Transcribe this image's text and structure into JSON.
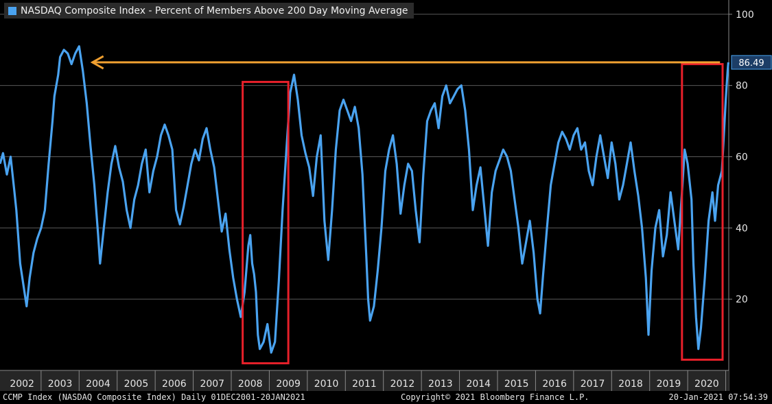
{
  "chart_data": {
    "type": "line",
    "title": "NASDAQ Composite Index - Percent of Members Above 200 Day Moving Average",
    "y_ticks": [
      20,
      40,
      60,
      80,
      100
    ],
    "ylim": [
      0,
      104
    ],
    "x_tick_labels": [
      "2002",
      "2003",
      "2004",
      "2005",
      "2006",
      "2007",
      "2008",
      "2009",
      "2010",
      "2011",
      "2012",
      "2013",
      "2014",
      "2015",
      "2016",
      "2017",
      "2018",
      "2019",
      "2020"
    ],
    "xlim": [
      2001.92,
      2021.08
    ],
    "last_value_label": "86.49",
    "reference_level": 86.49,
    "highlight_boxes": [
      {
        "x0": 2008.3,
        "x1": 2009.5,
        "y0": 2,
        "y1": 81
      },
      {
        "x0": 2019.85,
        "x1": 2021.25,
        "y0": 3,
        "y1": 86
      }
    ],
    "series": [
      {
        "color": "#4aa3f0",
        "points": [
          [
            2001.92,
            58
          ],
          [
            2002.0,
            61
          ],
          [
            2002.1,
            55
          ],
          [
            2002.2,
            60
          ],
          [
            2002.3,
            50
          ],
          [
            2002.35,
            45
          ],
          [
            2002.45,
            30
          ],
          [
            2002.55,
            23
          ],
          [
            2002.62,
            18
          ],
          [
            2002.7,
            26
          ],
          [
            2002.8,
            33
          ],
          [
            2002.9,
            37
          ],
          [
            2003.0,
            40
          ],
          [
            2003.1,
            45
          ],
          [
            2003.2,
            58
          ],
          [
            2003.3,
            70
          ],
          [
            2003.35,
            77
          ],
          [
            2003.45,
            83
          ],
          [
            2003.5,
            88
          ],
          [
            2003.6,
            90
          ],
          [
            2003.7,
            89
          ],
          [
            2003.8,
            86
          ],
          [
            2003.9,
            89
          ],
          [
            2004.0,
            91
          ],
          [
            2004.1,
            84
          ],
          [
            2004.2,
            75
          ],
          [
            2004.3,
            63
          ],
          [
            2004.4,
            52
          ],
          [
            2004.5,
            38
          ],
          [
            2004.55,
            30
          ],
          [
            2004.65,
            40
          ],
          [
            2004.75,
            50
          ],
          [
            2004.85,
            58
          ],
          [
            2004.95,
            63
          ],
          [
            2005.05,
            57
          ],
          [
            2005.15,
            53
          ],
          [
            2005.25,
            45
          ],
          [
            2005.35,
            40
          ],
          [
            2005.45,
            48
          ],
          [
            2005.55,
            52
          ],
          [
            2005.65,
            58
          ],
          [
            2005.75,
            62
          ],
          [
            2005.85,
            50
          ],
          [
            2005.95,
            56
          ],
          [
            2006.05,
            60
          ],
          [
            2006.15,
            66
          ],
          [
            2006.25,
            69
          ],
          [
            2006.35,
            66
          ],
          [
            2006.45,
            62
          ],
          [
            2006.55,
            45
          ],
          [
            2006.65,
            41
          ],
          [
            2006.75,
            46
          ],
          [
            2006.85,
            52
          ],
          [
            2006.95,
            58
          ],
          [
            2007.05,
            62
          ],
          [
            2007.15,
            59
          ],
          [
            2007.25,
            65
          ],
          [
            2007.35,
            68
          ],
          [
            2007.45,
            62
          ],
          [
            2007.55,
            57
          ],
          [
            2007.65,
            48
          ],
          [
            2007.75,
            39
          ],
          [
            2007.85,
            44
          ],
          [
            2007.95,
            34
          ],
          [
            2008.05,
            26
          ],
          [
            2008.15,
            20
          ],
          [
            2008.25,
            15
          ],
          [
            2008.35,
            22
          ],
          [
            2008.45,
            35
          ],
          [
            2008.5,
            38
          ],
          [
            2008.55,
            30
          ],
          [
            2008.6,
            27
          ],
          [
            2008.65,
            22
          ],
          [
            2008.7,
            10
          ],
          [
            2008.75,
            6
          ],
          [
            2008.85,
            8
          ],
          [
            2008.95,
            13
          ],
          [
            2009.05,
            5
          ],
          [
            2009.15,
            8
          ],
          [
            2009.25,
            25
          ],
          [
            2009.35,
            45
          ],
          [
            2009.45,
            62
          ],
          [
            2009.55,
            78
          ],
          [
            2009.65,
            83
          ],
          [
            2009.75,
            76
          ],
          [
            2009.85,
            66
          ],
          [
            2009.95,
            61
          ],
          [
            2010.05,
            57
          ],
          [
            2010.15,
            49
          ],
          [
            2010.25,
            60
          ],
          [
            2010.35,
            66
          ],
          [
            2010.45,
            42
          ],
          [
            2010.55,
            31
          ],
          [
            2010.65,
            45
          ],
          [
            2010.75,
            62
          ],
          [
            2010.85,
            73
          ],
          [
            2010.95,
            76
          ],
          [
            2011.05,
            73
          ],
          [
            2011.15,
            70
          ],
          [
            2011.25,
            74
          ],
          [
            2011.35,
            68
          ],
          [
            2011.45,
            55
          ],
          [
            2011.55,
            32
          ],
          [
            2011.6,
            20
          ],
          [
            2011.65,
            14
          ],
          [
            2011.75,
            18
          ],
          [
            2011.85,
            28
          ],
          [
            2011.95,
            40
          ],
          [
            2012.05,
            56
          ],
          [
            2012.15,
            62
          ],
          [
            2012.25,
            66
          ],
          [
            2012.35,
            58
          ],
          [
            2012.45,
            44
          ],
          [
            2012.55,
            52
          ],
          [
            2012.65,
            58
          ],
          [
            2012.75,
            56
          ],
          [
            2012.85,
            45
          ],
          [
            2012.95,
            36
          ],
          [
            2013.05,
            55
          ],
          [
            2013.15,
            70
          ],
          [
            2013.25,
            73
          ],
          [
            2013.35,
            75
          ],
          [
            2013.45,
            68
          ],
          [
            2013.55,
            77
          ],
          [
            2013.65,
            80
          ],
          [
            2013.75,
            75
          ],
          [
            2013.85,
            77
          ],
          [
            2013.95,
            79
          ],
          [
            2014.05,
            80
          ],
          [
            2014.15,
            73
          ],
          [
            2014.25,
            62
          ],
          [
            2014.35,
            45
          ],
          [
            2014.45,
            52
          ],
          [
            2014.55,
            57
          ],
          [
            2014.65,
            46
          ],
          [
            2014.75,
            35
          ],
          [
            2014.85,
            50
          ],
          [
            2014.95,
            56
          ],
          [
            2015.05,
            59
          ],
          [
            2015.15,
            62
          ],
          [
            2015.25,
            60
          ],
          [
            2015.35,
            56
          ],
          [
            2015.45,
            48
          ],
          [
            2015.55,
            40
          ],
          [
            2015.65,
            30
          ],
          [
            2015.75,
            36
          ],
          [
            2015.85,
            42
          ],
          [
            2015.95,
            33
          ],
          [
            2016.05,
            20
          ],
          [
            2016.12,
            16
          ],
          [
            2016.2,
            27
          ],
          [
            2016.3,
            40
          ],
          [
            2016.4,
            52
          ],
          [
            2016.5,
            58
          ],
          [
            2016.6,
            64
          ],
          [
            2016.7,
            67
          ],
          [
            2016.8,
            65
          ],
          [
            2016.9,
            62
          ],
          [
            2017.0,
            66
          ],
          [
            2017.1,
            68
          ],
          [
            2017.2,
            62
          ],
          [
            2017.3,
            64
          ],
          [
            2017.4,
            56
          ],
          [
            2017.5,
            52
          ],
          [
            2017.6,
            60
          ],
          [
            2017.7,
            66
          ],
          [
            2017.8,
            60
          ],
          [
            2017.9,
            54
          ],
          [
            2018.0,
            64
          ],
          [
            2018.1,
            58
          ],
          [
            2018.2,
            48
          ],
          [
            2018.3,
            52
          ],
          [
            2018.4,
            58
          ],
          [
            2018.5,
            64
          ],
          [
            2018.6,
            56
          ],
          [
            2018.7,
            49
          ],
          [
            2018.8,
            40
          ],
          [
            2018.9,
            26
          ],
          [
            2018.97,
            10
          ],
          [
            2019.05,
            28
          ],
          [
            2019.15,
            40
          ],
          [
            2019.25,
            45
          ],
          [
            2019.35,
            32
          ],
          [
            2019.45,
            38
          ],
          [
            2019.55,
            50
          ],
          [
            2019.65,
            42
          ],
          [
            2019.75,
            34
          ],
          [
            2019.85,
            50
          ],
          [
            2019.92,
            62
          ],
          [
            2020.0,
            58
          ],
          [
            2020.1,
            48
          ],
          [
            2020.15,
            30
          ],
          [
            2020.22,
            15
          ],
          [
            2020.28,
            6
          ],
          [
            2020.35,
            12
          ],
          [
            2020.45,
            26
          ],
          [
            2020.55,
            42
          ],
          [
            2020.65,
            50
          ],
          [
            2020.72,
            42
          ],
          [
            2020.8,
            52
          ],
          [
            2020.9,
            56
          ],
          [
            2021.0,
            76
          ],
          [
            2021.05,
            84
          ],
          [
            2021.07,
            86.49
          ]
        ]
      }
    ]
  },
  "footer": {
    "left": "CCMP Index (NASDAQ Composite Index)  Daily 01DEC2001-20JAN2021",
    "center": "Copyright© 2021 Bloomberg Finance L.P.",
    "right": "20-Jan-2021 07:54:39"
  },
  "colors": {
    "line": "#4aa3f0",
    "arrow": "#f0a030",
    "box": "#e8202a",
    "grid": "#5a5a5a"
  }
}
